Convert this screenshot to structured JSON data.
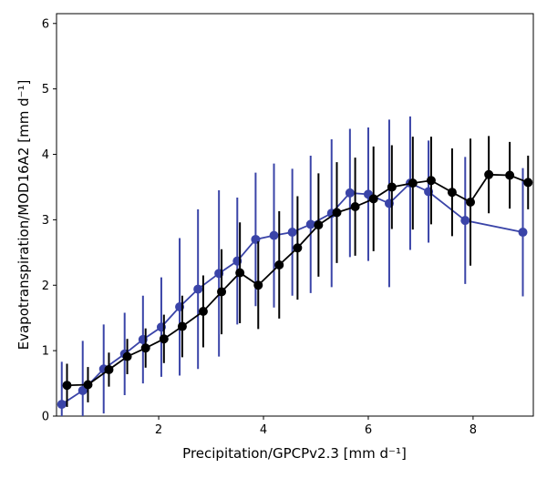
{
  "chart_data": {
    "type": "line",
    "title": "",
    "xlabel": "Precipitation/GPCPv2.3 [mm d⁻¹]",
    "ylabel": "Evapotranspiration/MOD16A2 [mm d⁻¹]",
    "xlim": [
      0.05,
      9.15
    ],
    "ylim": [
      0,
      6.15
    ],
    "xticks": [
      2,
      4,
      6,
      8
    ],
    "yticks": [
      0,
      1,
      2,
      3,
      4,
      5,
      6
    ],
    "grid": false,
    "legend": "none",
    "series": [
      {
        "color": "#3a44a8",
        "x": [
          0.15,
          0.55,
          0.95,
          1.35,
          1.7,
          2.05,
          2.4,
          2.75,
          3.15,
          3.5,
          3.85,
          4.2,
          4.55,
          4.9,
          5.3,
          5.65,
          6.0,
          6.4,
          6.8,
          7.15,
          7.85,
          8.95
        ],
        "y": [
          0.18,
          0.39,
          0.72,
          0.95,
          1.17,
          1.36,
          1.67,
          1.94,
          2.18,
          2.37,
          2.7,
          2.76,
          2.81,
          2.93,
          3.1,
          3.41,
          3.39,
          3.25,
          3.56,
          3.43,
          2.99,
          2.81
        ],
        "err": [
          0.65,
          0.76,
          0.68,
          0.63,
          0.67,
          0.76,
          1.05,
          1.22,
          1.27,
          0.97,
          1.02,
          1.1,
          0.97,
          1.05,
          1.13,
          0.98,
          1.02,
          1.28,
          1.02,
          0.78,
          0.97,
          0.98
        ]
      },
      {
        "color": "#000000",
        "x": [
          0.25,
          0.65,
          1.05,
          1.4,
          1.75,
          2.1,
          2.45,
          2.85,
          3.2,
          3.55,
          3.9,
          4.3,
          4.65,
          5.05,
          5.4,
          5.75,
          6.1,
          6.45,
          6.85,
          7.2,
          7.6,
          7.95,
          8.3,
          8.7,
          9.05
        ],
        "y": [
          0.47,
          0.48,
          0.71,
          0.91,
          1.04,
          1.18,
          1.37,
          1.6,
          1.9,
          2.19,
          2.0,
          2.31,
          2.57,
          2.92,
          3.11,
          3.2,
          3.32,
          3.5,
          3.56,
          3.6,
          3.42,
          3.27,
          3.69,
          3.68,
          3.57
        ],
        "err": [
          0.33,
          0.27,
          0.26,
          0.27,
          0.3,
          0.37,
          0.47,
          0.55,
          0.65,
          0.77,
          0.67,
          0.82,
          0.79,
          0.79,
          0.77,
          0.75,
          0.8,
          0.64,
          0.71,
          0.67,
          0.67,
          0.97,
          0.59,
          0.51,
          0.41
        ]
      }
    ]
  }
}
